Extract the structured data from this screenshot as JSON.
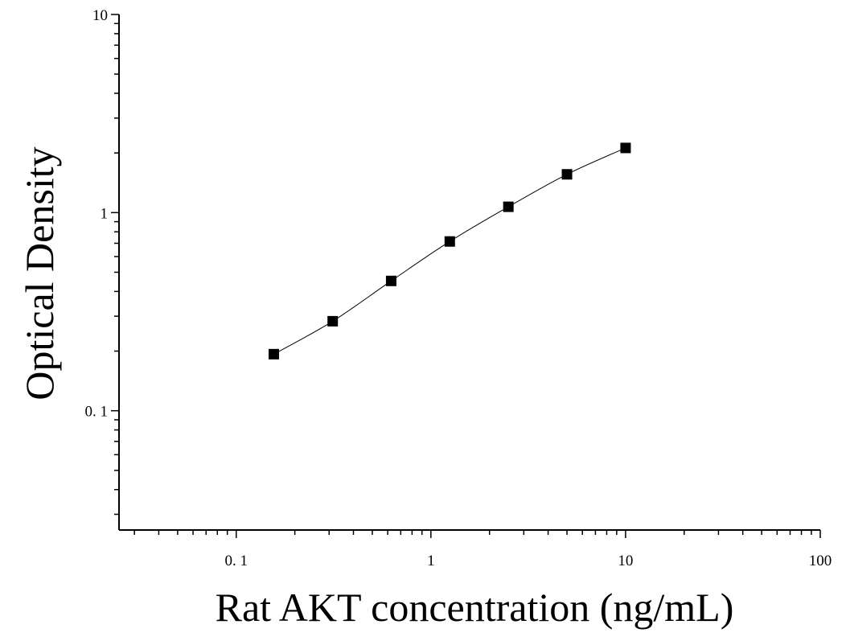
{
  "chart_data": {
    "type": "scatter",
    "title": "",
    "xlabel": "Rat AKT concentration (ng/mL)",
    "ylabel": "Optical Density",
    "x_scale": "log",
    "y_scale": "log",
    "xlim": [
      0.025,
      100
    ],
    "ylim": [
      0.025,
      10
    ],
    "x_tick_values": [
      0.1,
      1,
      10,
      100
    ],
    "x_tick_labels": [
      "0. 1",
      "1",
      "10",
      "100"
    ],
    "y_tick_values": [
      0.1,
      1,
      10
    ],
    "y_tick_labels": [
      "0. 1",
      "1",
      "10"
    ],
    "grid": false,
    "legend": "none",
    "marker": "square",
    "fit_line": "smooth curve through points",
    "colors": {
      "marker": "#000000",
      "line": "#000000",
      "axis": "#000000"
    },
    "series": [
      {
        "x": [
          0.156,
          0.313,
          0.625,
          1.25,
          2.5,
          5,
          10
        ],
        "values": [
          0.193,
          0.283,
          0.452,
          0.715,
          1.07,
          1.56,
          2.12
        ]
      }
    ]
  }
}
